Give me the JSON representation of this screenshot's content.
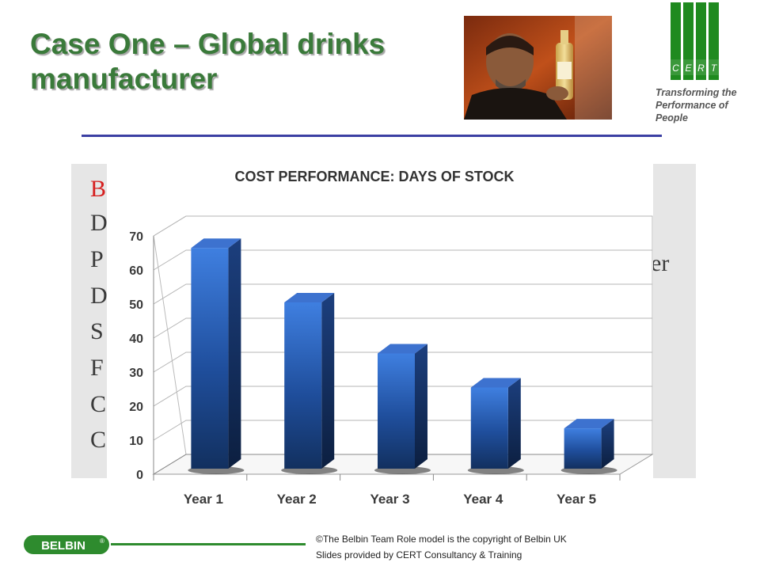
{
  "slide": {
    "title": "Case One – Global drinks manufacturer"
  },
  "cert": {
    "letters": [
      "C",
      "E",
      "R",
      "T"
    ],
    "tagline": [
      "Transforming the",
      "Performance of",
      "People"
    ],
    "brand_color": "#1f8a1f"
  },
  "background_text": {
    "letters": [
      "B",
      "D",
      "P",
      "D",
      "S",
      "F",
      "C",
      "C"
    ],
    "right_fragment": "er"
  },
  "chart_data": {
    "type": "bar",
    "title": "COST PERFORMANCE: DAYS OF STOCK",
    "categories": [
      "Year 1",
      "Year 2",
      "Year 3",
      "Year 4",
      "Year 5"
    ],
    "values": [
      66,
      50,
      35,
      25,
      13
    ],
    "ylim": [
      0,
      70
    ],
    "yticks": [
      "0",
      "10",
      "20",
      "30",
      "40",
      "50",
      "60",
      "70"
    ],
    "grid": true,
    "legend": "none",
    "bar_color": "#2f5fb3"
  },
  "footer": {
    "badge_label": "BELBIN",
    "badge_mark": "®",
    "copyright_line": "©The  Belbin Team Role model is the copyright of Belbin UK",
    "credit_line": "Slides provided by CERT Consultancy & Training",
    "rule_color": "#2e8b2e"
  }
}
